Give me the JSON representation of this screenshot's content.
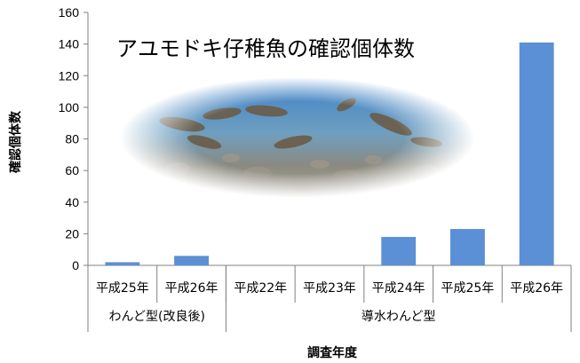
{
  "chart_data": {
    "type": "bar",
    "title": "アユモドキ仔稚魚の確認個体数",
    "xlabel": "調査年度",
    "ylabel": "確認個体数",
    "ylim": [
      0,
      160
    ],
    "yticks": [
      0,
      20,
      40,
      60,
      80,
      100,
      120,
      140,
      160
    ],
    "categories": [
      "平成25年",
      "平成26年",
      "平成22年",
      "平成23年",
      "平成24年",
      "平成25年",
      "平成26年"
    ],
    "groups": [
      {
        "label": "わんど型(改良後)",
        "count": 2
      },
      {
        "label": "導水わんど型",
        "count": 5
      }
    ],
    "values": [
      2,
      6,
      0,
      0,
      18,
      23,
      141
    ],
    "bar_color": "#5b8fd6",
    "grid": false
  }
}
